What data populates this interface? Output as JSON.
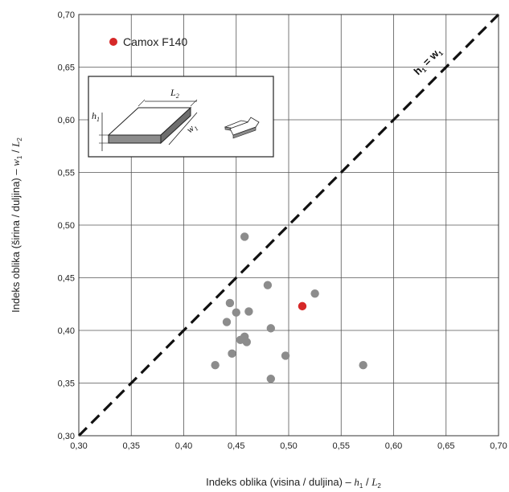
{
  "chart_data": {
    "type": "scatter",
    "xlabel_main": "Indeks oblika (visina / duljina) – ",
    "xlabel_var": "h",
    "xlabel_sub": "1",
    "xlabel_sep": " / ",
    "xlabel_var2": "L",
    "xlabel_sub2": "2",
    "ylabel_main": "Indeks oblika (širina / duljina) – ",
    "ylabel_var": "w",
    "ylabel_sub": "1",
    "ylabel_sep": " / ",
    "ylabel_var2": "L",
    "ylabel_sub2": "2",
    "xlim": [
      0.3,
      0.7
    ],
    "ylim": [
      0.3,
      0.7
    ],
    "x_ticks": [
      "0,30",
      "0,35",
      "0,40",
      "0,45",
      "0,50",
      "0,55",
      "0,60",
      "0,65",
      "0,70"
    ],
    "y_ticks": [
      "0,30",
      "0,35",
      "0,40",
      "0,45",
      "0,50",
      "0,55",
      "0,60",
      "0,65",
      "0,70"
    ],
    "grid": true,
    "reference_line": {
      "label_var1": "h",
      "label_sub1": "1",
      "label_eq": " = ",
      "label_var2": "w",
      "label_sub2": "1",
      "style": "dashed"
    },
    "legend": {
      "position": "top-left",
      "entry": "Camox F140",
      "color": "#d62828"
    },
    "inset": {
      "label_h": "h",
      "label_h_sub": "1",
      "label_L": "L",
      "label_L_sub": "2",
      "label_w": "w",
      "label_w_sub": "1"
    },
    "series": [
      {
        "color": "#8c8c8c",
        "points": [
          [
            0.458,
            0.489
          ],
          [
            0.48,
            0.443
          ],
          [
            0.444,
            0.426
          ],
          [
            0.45,
            0.417
          ],
          [
            0.462,
            0.418
          ],
          [
            0.441,
            0.408
          ],
          [
            0.483,
            0.402
          ],
          [
            0.454,
            0.391
          ],
          [
            0.458,
            0.394
          ],
          [
            0.46,
            0.389
          ],
          [
            0.446,
            0.378
          ],
          [
            0.497,
            0.376
          ],
          [
            0.43,
            0.367
          ],
          [
            0.483,
            0.354
          ],
          [
            0.525,
            0.435
          ],
          [
            0.571,
            0.367
          ]
        ]
      },
      {
        "name": "Camox F140",
        "color": "#d62828",
        "points": [
          [
            0.513,
            0.423
          ]
        ]
      }
    ]
  }
}
